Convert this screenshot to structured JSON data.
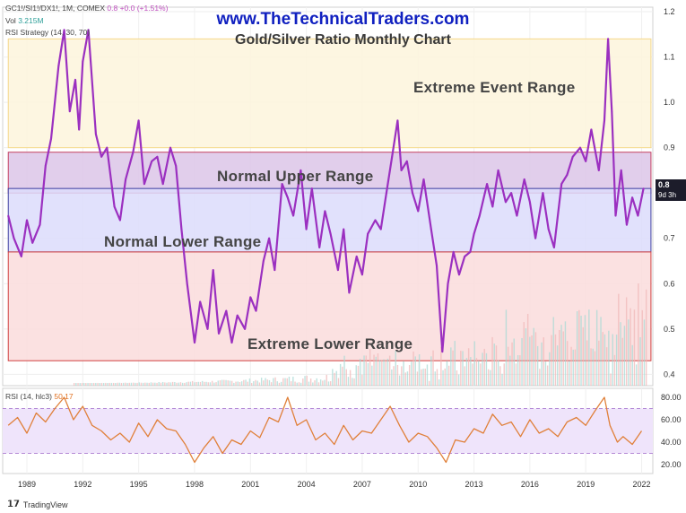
{
  "header": {
    "symbol": "GC1!/SI1!/DX1!, 1M, COMEX",
    "change": "0.8  +0.0 (+1.51%)",
    "vol_label": "Vol",
    "vol_value": "3.215M",
    "strategy": "RSI Strategy (14, 30, 70)"
  },
  "website": "www.TheTechnicalTraders.com",
  "chart_title": "Gold/Silver Ratio Monthly Chart",
  "price_badge": {
    "value": "0.8",
    "sub": "9d 3h"
  },
  "footer_brand": "TradingView",
  "rsi_header": {
    "label": "RSI (14, hlc3)",
    "value": "50.17"
  },
  "chart_data": [
    {
      "type": "line",
      "title": "Gold/Silver Ratio Monthly Chart",
      "series": [
        {
          "name": "",
          "color": "#9b30c0",
          "x": [
            1988.0,
            1988.3,
            1988.7,
            1989.0,
            1989.3,
            1989.7,
            1990.0,
            1990.3,
            1990.7,
            1991.0,
            1991.3,
            1991.6,
            1991.8,
            1992.0,
            1992.3,
            1992.7,
            1993.0,
            1993.3,
            1993.7,
            1994.0,
            1994.3,
            1994.7,
            1995.0,
            1995.3,
            1995.7,
            1996.0,
            1996.3,
            1996.7,
            1997.0,
            1997.3,
            1997.6,
            1998.0,
            1998.3,
            1998.7,
            1999.0,
            1999.3,
            1999.7,
            2000.0,
            2000.3,
            2000.7,
            2001.0,
            2001.3,
            2001.7,
            2002.0,
            2002.3,
            2002.7,
            2003.0,
            2003.3,
            2003.7,
            2004.0,
            2004.3,
            2004.7,
            2005.0,
            2005.3,
            2005.7,
            2006.0,
            2006.3,
            2006.7,
            2007.0,
            2007.3,
            2007.7,
            2008.0,
            2008.3,
            2008.6,
            2008.9,
            2009.1,
            2009.4,
            2009.7,
            2010.0,
            2010.3,
            2010.7,
            2011.0,
            2011.3,
            2011.6,
            2011.9,
            2012.2,
            2012.5,
            2012.8,
            2013.0,
            2013.3,
            2013.7,
            2014.0,
            2014.3,
            2014.7,
            2015.0,
            2015.3,
            2015.7,
            2016.0,
            2016.3,
            2016.7,
            2017.0,
            2017.3,
            2017.7,
            2018.0,
            2018.3,
            2018.7,
            2019.0,
            2019.3,
            2019.7,
            2020.0,
            2020.2,
            2020.4,
            2020.6,
            2020.9,
            2021.2,
            2021.5,
            2021.8,
            2022.1
          ],
          "values": [
            0.75,
            0.7,
            0.66,
            0.74,
            0.69,
            0.73,
            0.86,
            0.92,
            1.08,
            1.16,
            0.98,
            1.05,
            0.94,
            1.09,
            1.16,
            0.93,
            0.88,
            0.9,
            0.77,
            0.74,
            0.83,
            0.89,
            0.96,
            0.82,
            0.87,
            0.88,
            0.82,
            0.9,
            0.86,
            0.72,
            0.6,
            0.47,
            0.56,
            0.5,
            0.63,
            0.49,
            0.54,
            0.47,
            0.53,
            0.5,
            0.57,
            0.54,
            0.65,
            0.7,
            0.63,
            0.82,
            0.79,
            0.75,
            0.85,
            0.72,
            0.81,
            0.68,
            0.76,
            0.71,
            0.63,
            0.72,
            0.58,
            0.66,
            0.62,
            0.71,
            0.74,
            0.72,
            0.8,
            0.88,
            0.96,
            0.85,
            0.87,
            0.8,
            0.76,
            0.83,
            0.72,
            0.64,
            0.45,
            0.6,
            0.67,
            0.62,
            0.66,
            0.67,
            0.71,
            0.75,
            0.82,
            0.77,
            0.85,
            0.78,
            0.8,
            0.75,
            0.83,
            0.78,
            0.7,
            0.8,
            0.72,
            0.68,
            0.82,
            0.84,
            0.88,
            0.9,
            0.87,
            0.94,
            0.85,
            0.96,
            1.14,
            0.98,
            0.75,
            0.85,
            0.73,
            0.79,
            0.75,
            0.81
          ]
        }
      ],
      "bands": [
        {
          "name": "Extreme Event Range",
          "from": 0.9,
          "to": 1.14,
          "color": "#fdf4dc"
        },
        {
          "name": "Normal Upper Range",
          "from": 0.8,
          "to": 0.89,
          "color": "#dcc6e8"
        },
        {
          "name": "Normal Lower Range",
          "from": 0.67,
          "to": 0.81,
          "color": "#dcdcfc"
        },
        {
          "name": "Extreme Lower Range",
          "from": 0.43,
          "to": 0.67,
          "color": "#fadcdc"
        }
      ],
      "xlim": [
        1987.7,
        2022.6
      ],
      "ylim": [
        0.375,
        1.21
      ],
      "yticks": [
        0.4,
        0.5,
        0.6,
        0.7,
        0.8,
        0.9,
        1.0,
        1.1,
        1.2
      ],
      "ytick_labels": [
        "0.4",
        "0.5",
        "0.6",
        "0.7",
        "0.8",
        "0.9",
        "1.0",
        "1.1",
        "1.2"
      ],
      "xticks": [
        1989,
        1992,
        1995,
        1998,
        2001,
        2004,
        2007,
        2010,
        2013,
        2016,
        2019,
        2022
      ],
      "xtick_labels": [
        "1989",
        "1992",
        "1995",
        "1998",
        "2001",
        "2004",
        "2007",
        "2010",
        "2013",
        "2016",
        "2019",
        "2022"
      ],
      "grid": true,
      "volume_bars": true
    },
    {
      "type": "line",
      "title": "RSI (14, hlc3)",
      "series": [
        {
          "name": "",
          "color": "#e0803a",
          "x": [
            1988.0,
            1988.5,
            1989.0,
            1989.5,
            1990.0,
            1990.5,
            1991.0,
            1991.5,
            1992.0,
            1992.5,
            1993.0,
            1993.5,
            1994.0,
            1994.5,
            1995.0,
            1995.5,
            1996.0,
            1996.5,
            1997.0,
            1997.5,
            1998.0,
            1998.5,
            1999.0,
            1999.5,
            2000.0,
            2000.5,
            2001.0,
            2001.5,
            2002.0,
            2002.5,
            2003.0,
            2003.5,
            2004.0,
            2004.5,
            2005.0,
            2005.5,
            2006.0,
            2006.5,
            2007.0,
            2007.5,
            2008.0,
            2008.5,
            2009.0,
            2009.5,
            2010.0,
            2010.5,
            2011.0,
            2011.5,
            2012.0,
            2012.5,
            2013.0,
            2013.5,
            2014.0,
            2014.5,
            2015.0,
            2015.5,
            2016.0,
            2016.5,
            2017.0,
            2017.5,
            2018.0,
            2018.5,
            2019.0,
            2019.5,
            2020.0,
            2020.3,
            2020.7,
            2021.0,
            2021.5,
            2022.0
          ],
          "values": [
            55,
            62,
            48,
            66,
            58,
            70,
            80,
            60,
            72,
            55,
            50,
            42,
            48,
            40,
            57,
            45,
            60,
            52,
            50,
            38,
            22,
            35,
            45,
            30,
            42,
            38,
            50,
            44,
            62,
            58,
            80,
            55,
            60,
            42,
            48,
            38,
            55,
            42,
            50,
            48,
            60,
            72,
            55,
            40,
            48,
            45,
            35,
            22,
            42,
            40,
            52,
            48,
            65,
            55,
            58,
            45,
            60,
            48,
            52,
            45,
            58,
            62,
            55,
            68,
            80,
            55,
            40,
            45,
            38,
            50
          ]
        }
      ],
      "ylim": [
        12,
        88
      ],
      "yticks": [
        20,
        40,
        60,
        80
      ],
      "ytick_labels": [
        "20.00",
        "40.00",
        "60.00",
        "80.00"
      ],
      "bands": [
        {
          "from": 30,
          "to": 70,
          "color": "#efe4fb"
        }
      ],
      "xlim": [
        1987.7,
        2022.6
      ]
    }
  ]
}
